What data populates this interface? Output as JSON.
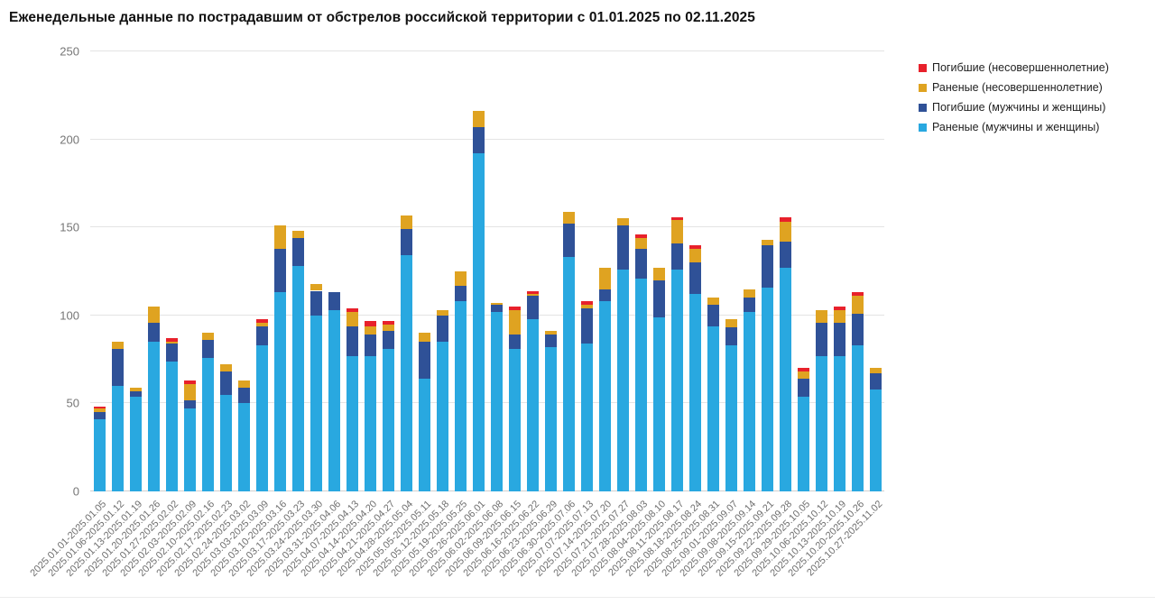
{
  "title": "Еженедельные данные по пострадавшим от обстрелов российской территории с 01.01.2025 по 02.11.2025",
  "chart_data": {
    "type": "bar",
    "stacked": true,
    "title": "Еженедельные данные по пострадавшим от обстрелов российской территории с 01.01.2025 по 02.11.2025",
    "xlabel": "",
    "ylabel": "",
    "ylim": [
      0,
      250
    ],
    "yticks": [
      0,
      50,
      100,
      150,
      200,
      250
    ],
    "grid": true,
    "legend_position": "top-right",
    "stack_order_bottom_to_top": [
      "Раненые (мужчины и женщины)",
      "Погибшие (мужчины и женщины)",
      "Раненые (несовершеннолетние)",
      "Погибшие (несовершеннолетние)"
    ],
    "categories": [
      "2025.01.01-2025.01.05",
      "2025.01.06-2025.01.12",
      "2025.01.13-2025.01.19",
      "2025.01.20-2025.01.26",
      "2025.01.27-2025.02.02",
      "2025.02.03-2025.02.09",
      "2025.02.10-2025.02.16",
      "2025.02.17-2025.02.23",
      "2025.02.24-2025.03.02",
      "2025.03.03-2025.03.09",
      "2025.03.10-2025.03.16",
      "2025.03.17-2025.03.23",
      "2025.03.24-2025.03.30",
      "2025.03.31-2025.04.06",
      "2025.04.07-2025.04.13",
      "2025.04.14-2025.04.20",
      "2025.04.21-2025.04.27",
      "2025.04.28-2025.05.04",
      "2025.05.05-2025.05.11",
      "2025.05.12-2025.05.18",
      "2025.05.19-2025.05.25",
      "2025.05.26-2025.06.01",
      "2025.06.02-2025.06.08",
      "2025.06.09-2025.06.15",
      "2025.06.16-2025.06.22",
      "2025.06.23-2025.06.29",
      "2025.06.30-2025.07.06",
      "2025.07.07-2025.07.13",
      "2025.07.14-2025.07.20",
      "2025.07.21-2025.07.27",
      "2025.07.28-2025.08.03",
      "2025.08.04-2025.08.10",
      "2025.08.11-2025.08.17",
      "2025.08.18-2025.08.24",
      "2025.08.25-2025.08.31",
      "2025.09.01-2025.09.07",
      "2025.09.08-2025.09.14",
      "2025.09.15-2025.09.21",
      "2025.09.22-2025.09.28",
      "2025.09.29-2025.10.05",
      "2025.10.06-2025.10.12",
      "2025.10.13-2025.10.19",
      "2025.10.20-2025.10.26",
      "2025.10.27-2025.11.02"
    ],
    "series": [
      {
        "name": "Погибшие (несовершеннолетние)",
        "color": "#e8212b",
        "values": [
          1,
          0,
          0,
          0,
          2,
          2,
          0,
          0,
          0,
          2,
          0,
          0,
          0,
          0,
          2,
          3,
          2,
          0,
          0,
          0,
          0,
          0,
          0,
          2,
          2,
          0,
          0,
          2,
          0,
          0,
          2,
          0,
          2,
          2,
          0,
          0,
          0,
          0,
          3,
          2,
          0,
          2,
          2,
          0
        ]
      },
      {
        "name": "Раненые (несовершеннолетние)",
        "color": "#dfa321",
        "values": [
          2,
          4,
          2,
          9,
          1,
          9,
          4,
          4,
          4,
          2,
          13,
          4,
          4,
          0,
          8,
          5,
          4,
          8,
          5,
          3,
          8,
          9,
          1,
          14,
          1,
          2,
          7,
          2,
          12,
          4,
          6,
          7,
          13,
          8,
          4,
          5,
          5,
          3,
          11,
          4,
          7,
          7,
          10,
          3
        ]
      },
      {
        "name": "Погибшие (мужчины и женщины)",
        "color": "#2f5197",
        "values": [
          4,
          21,
          3,
          11,
          10,
          5,
          10,
          13,
          9,
          11,
          25,
          16,
          14,
          10,
          17,
          12,
          10,
          15,
          21,
          15,
          9,
          15,
          4,
          8,
          13,
          7,
          19,
          20,
          7,
          25,
          17,
          21,
          15,
          18,
          12,
          10,
          8,
          24,
          15,
          10,
          19,
          19,
          18,
          9
        ]
      },
      {
        "name": "Раненые (мужчины и женщины)",
        "color": "#29a8e0",
        "values": [
          41,
          60,
          54,
          85,
          74,
          47,
          76,
          55,
          50,
          83,
          113,
          128,
          100,
          103,
          77,
          77,
          81,
          134,
          64,
          85,
          108,
          192,
          102,
          81,
          98,
          82,
          133,
          84,
          108,
          126,
          121,
          99,
          126,
          112,
          94,
          83,
          102,
          116,
          127,
          54,
          77,
          77,
          83,
          58
        ]
      }
    ]
  }
}
